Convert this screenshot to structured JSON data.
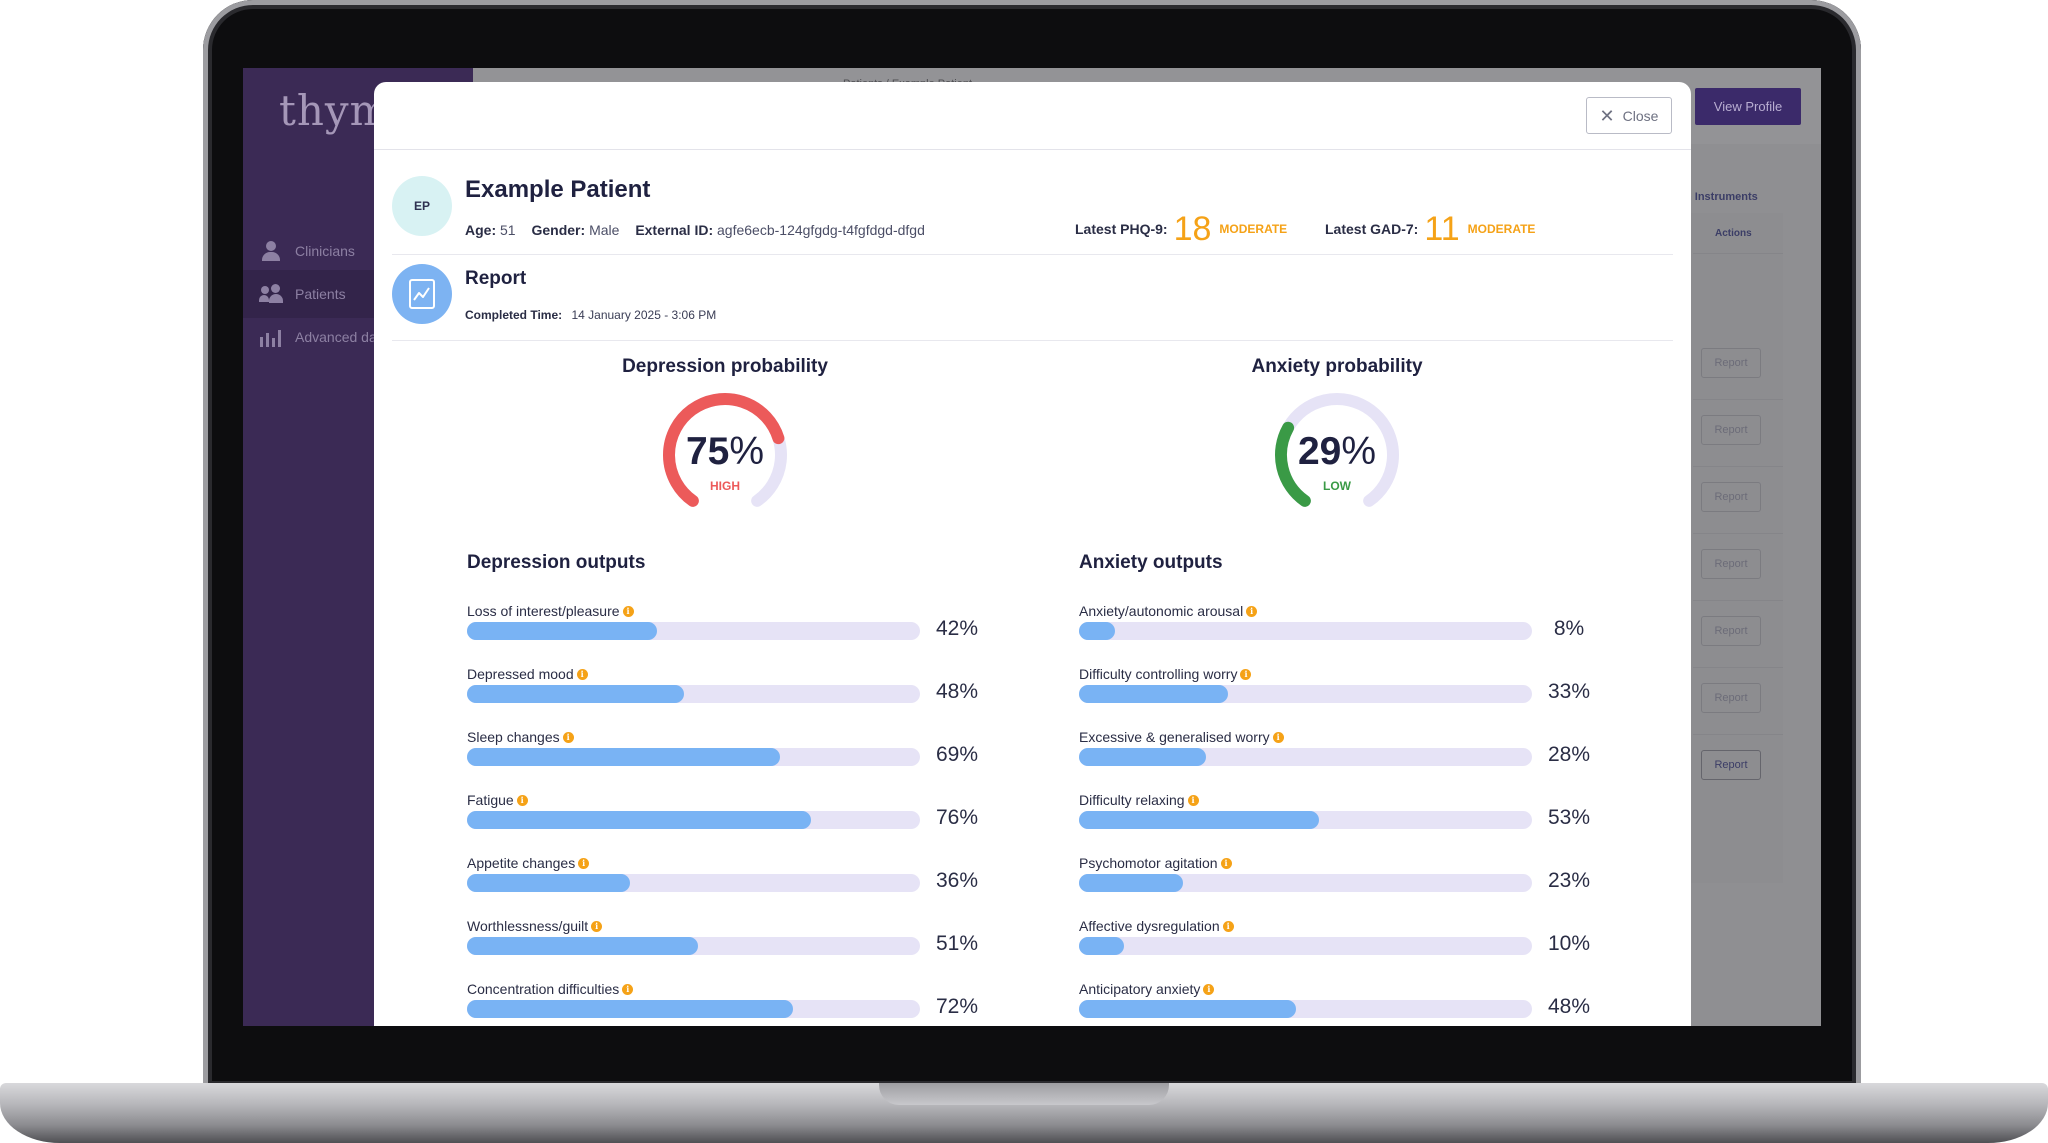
{
  "app": {
    "logo": "thym",
    "breadcrumb": "Patients / Example Patient",
    "view_profile_label": "View Profile",
    "sidebar": {
      "items": [
        {
          "label": "Clinicians",
          "icon": "clinician-icon"
        },
        {
          "label": "Patients",
          "icon": "patients-icon"
        },
        {
          "label": "Advanced da",
          "icon": "chart-icon"
        }
      ]
    },
    "panel": {
      "instruments_header": "n Instruments",
      "actions_header": "Actions",
      "report_labels": [
        "Report",
        "Report",
        "Report",
        "Report",
        "Report",
        "Report",
        "Report"
      ]
    }
  },
  "modal": {
    "close_label": "Close",
    "patient": {
      "initials": "EP",
      "name": "Example Patient",
      "age_label": "Age:",
      "age": "51",
      "gender_label": "Gender:",
      "gender": "Male",
      "external_id_label": "External ID:",
      "external_id": "agfe6ecb-124gfgdg-t4fgfdgd-dfgd",
      "phq9_label": "Latest PHQ-9:",
      "phq9_score": "18",
      "phq9_severity": "MODERATE",
      "gad7_label": "Latest GAD-7:",
      "gad7_score": "11",
      "gad7_severity": "MODERATE"
    },
    "report": {
      "title": "Report",
      "completed_label": "Completed Time:",
      "completed_time": "14 January 2025 - 3:06 PM"
    },
    "depression": {
      "title": "Depression probability",
      "value": "75",
      "pct_sign": "%",
      "fraction": 0.75,
      "level": "HIGH",
      "level_color": "#ec5a5a",
      "outputs_title": "Depression outputs",
      "outputs": [
        {
          "label": "Loss of interest/pleasure",
          "value": 42,
          "display": "42%"
        },
        {
          "label": "Depressed mood",
          "value": 48,
          "display": "48%"
        },
        {
          "label": "Sleep changes",
          "value": 69,
          "display": "69%"
        },
        {
          "label": "Fatigue",
          "value": 76,
          "display": "76%"
        },
        {
          "label": "Appetite changes",
          "value": 36,
          "display": "36%"
        },
        {
          "label": "Worthlessness/guilt",
          "value": 51,
          "display": "51%"
        },
        {
          "label": "Concentration difficulties",
          "value": 72,
          "display": "72%"
        }
      ]
    },
    "anxiety": {
      "title": "Anxiety probability",
      "value": "29",
      "pct_sign": "%",
      "fraction": 0.29,
      "level": "LOW",
      "level_color": "#3a9a46",
      "outputs_title": "Anxiety outputs",
      "outputs": [
        {
          "label": "Anxiety/autonomic arousal",
          "value": 8,
          "display": "8%"
        },
        {
          "label": "Difficulty controlling worry",
          "value": 33,
          "display": "33%"
        },
        {
          "label": "Excessive & generalised worry",
          "value": 28,
          "display": "28%"
        },
        {
          "label": "Difficulty relaxing",
          "value": 53,
          "display": "53%"
        },
        {
          "label": "Psychomotor agitation",
          "value": 23,
          "display": "23%"
        },
        {
          "label": "Affective dysregulation",
          "value": 10,
          "display": "10%"
        },
        {
          "label": "Anticipatory anxiety",
          "value": 48,
          "display": "48%"
        }
      ]
    },
    "colors": {
      "accent": "#f5a217",
      "bar_fill": "#79b3f4",
      "bar_track": "#e6e3f6",
      "gauge_track": "#e6e3f6",
      "high": "#ec5a5a",
      "low": "#3a9a46"
    }
  }
}
